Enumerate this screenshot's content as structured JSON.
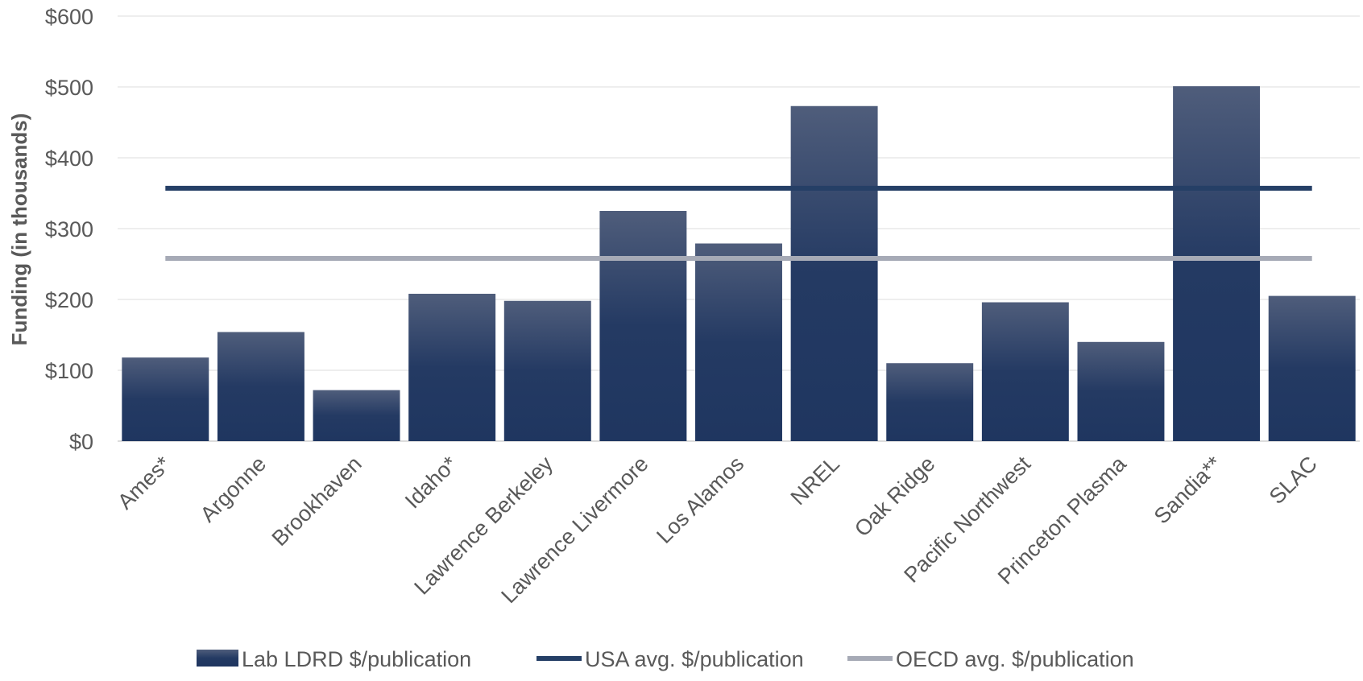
{
  "chart_data": {
    "type": "bar",
    "title": "",
    "xlabel": "",
    "ylabel": "Funding (in thousands)",
    "ylim": [
      0,
      600
    ],
    "y_ticks": [
      0,
      100,
      200,
      300,
      400,
      500,
      600
    ],
    "y_tick_labels": [
      "$0",
      "$100",
      "$200",
      "$300",
      "$400",
      "$500",
      "$600"
    ],
    "grid": true,
    "legend_position": "bottom",
    "categories": [
      "Ames*",
      "Argonne",
      "Brookhaven",
      "Idaho*",
      "Lawrence Berkeley",
      "Lawrence Livermore",
      "Los Alamos",
      "NREL",
      "Oak Ridge",
      "Pacific Northwest",
      "Princeton Plasma",
      "Sandia**",
      "SLAC"
    ],
    "series": [
      {
        "name": "Lab LDRD $/publication",
        "kind": "bar",
        "color": "#243a63",
        "values": [
          118,
          154,
          72,
          208,
          198,
          325,
          279,
          473,
          110,
          196,
          140,
          501,
          205
        ]
      },
      {
        "name": "USA avg. $/publication",
        "kind": "line",
        "color": "#253f66",
        "values": [
          357,
          357,
          357,
          357,
          357,
          357,
          357,
          357,
          357,
          357,
          357,
          357,
          357
        ]
      },
      {
        "name": "OECD avg. $/publication",
        "kind": "line",
        "color": "#a6aab6",
        "values": [
          258,
          258,
          258,
          258,
          258,
          258,
          258,
          258,
          258,
          258,
          258,
          258,
          258
        ]
      }
    ]
  }
}
